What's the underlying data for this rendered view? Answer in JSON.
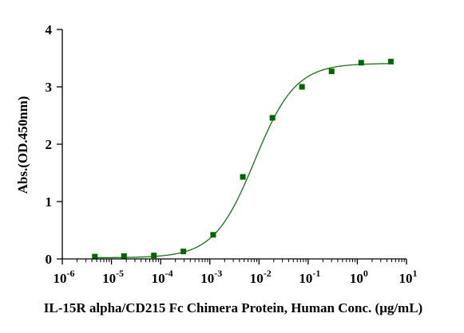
{
  "chart_data": {
    "type": "scatter",
    "title": "",
    "xlabel": "IL-15R alpha/CD215 Fc Chimera Protein, Human Conc. (μg/mL)",
    "ylabel": "Abs.(OD.450nm)",
    "xscale": "log",
    "xlim": [
      1e-06,
      10
    ],
    "ylim": [
      0,
      4
    ],
    "x_tick_labels": [
      {
        "base": "10",
        "exp": "-6"
      },
      {
        "base": "10",
        "exp": "-5"
      },
      {
        "base": "10",
        "exp": "-4"
      },
      {
        "base": "10",
        "exp": "-3"
      },
      {
        "base": "10",
        "exp": "-2"
      },
      {
        "base": "10",
        "exp": "-1"
      },
      {
        "base": "10",
        "exp": "0"
      },
      {
        "base": "10",
        "exp": "1"
      }
    ],
    "y_ticks": [
      0,
      1,
      2,
      3,
      4
    ],
    "grid": false,
    "legend": "none",
    "series": [
      {
        "x": [
          4.6e-06,
          1.8e-05,
          7.3e-05,
          0.00029,
          0.00117,
          0.0047,
          0.0188,
          0.075,
          0.3,
          1.2,
          4.8
        ],
        "y": [
          0.04,
          0.05,
          0.06,
          0.13,
          0.42,
          1.43,
          2.46,
          3.0,
          3.27,
          3.42,
          3.44
        ],
        "marker": "square",
        "color": "#006400"
      }
    ],
    "fit_curve": {
      "model": "4PL",
      "bottom": 0.02,
      "top": 3.41,
      "ec50": 0.0082,
      "hill": 1.05,
      "color": "#1a6e1a"
    }
  }
}
